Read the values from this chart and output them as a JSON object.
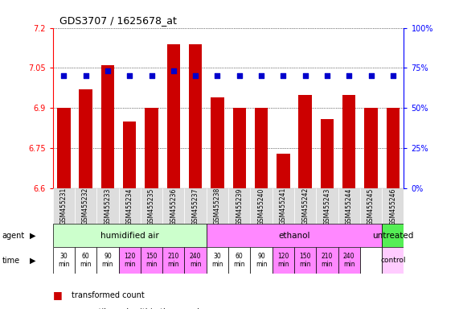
{
  "title": "GDS3707 / 1625678_at",
  "samples": [
    "GSM455231",
    "GSM455232",
    "GSM455233",
    "GSM455234",
    "GSM455235",
    "GSM455236",
    "GSM455237",
    "GSM455238",
    "GSM455239",
    "GSM455240",
    "GSM455241",
    "GSM455242",
    "GSM455243",
    "GSM455244",
    "GSM455245",
    "GSM455246"
  ],
  "bar_values": [
    6.9,
    6.97,
    7.06,
    6.85,
    6.9,
    7.14,
    7.14,
    6.94,
    6.9,
    6.9,
    6.73,
    6.95,
    6.86,
    6.95,
    6.9,
    6.9
  ],
  "percentile_values": [
    70,
    70,
    73,
    70,
    70,
    73,
    70,
    70,
    70,
    70,
    70,
    70,
    70,
    70,
    70,
    70
  ],
  "bar_color": "#cc0000",
  "dot_color": "#0000cc",
  "ymin": 6.6,
  "ymax": 7.2,
  "yticks_left": [
    6.6,
    6.75,
    6.9,
    7.05,
    7.2
  ],
  "yticks_right": [
    0,
    25,
    50,
    75,
    100
  ],
  "agent_groups": [
    {
      "label": "humidified air",
      "start": 0,
      "end": 7,
      "color": "#ccffcc"
    },
    {
      "label": "ethanol",
      "start": 7,
      "end": 15,
      "color": "#ff88ff"
    },
    {
      "label": "untreated",
      "start": 15,
      "end": 16,
      "color": "#55ee55"
    }
  ],
  "time_labels": [
    "30\nmin",
    "60\nmin",
    "90\nmin",
    "120\nmin",
    "150\nmin",
    "210\nmin",
    "240\nmin",
    "30\nmin",
    "60\nmin",
    "90\nmin",
    "120\nmin",
    "150\nmin",
    "210\nmin",
    "240\nmin",
    "",
    "control"
  ],
  "time_colors": [
    "#ffffff",
    "#ffffff",
    "#ffffff",
    "#ff88ff",
    "#ff88ff",
    "#ff88ff",
    "#ff88ff",
    "#ffffff",
    "#ffffff",
    "#ffffff",
    "#ff88ff",
    "#ff88ff",
    "#ff88ff",
    "#ff88ff",
    "#ffffff",
    "#ffccff"
  ],
  "legend_bar_color": "#cc0000",
  "legend_dot_color": "#0000cc",
  "xticklabel_bg": "#dddddd"
}
